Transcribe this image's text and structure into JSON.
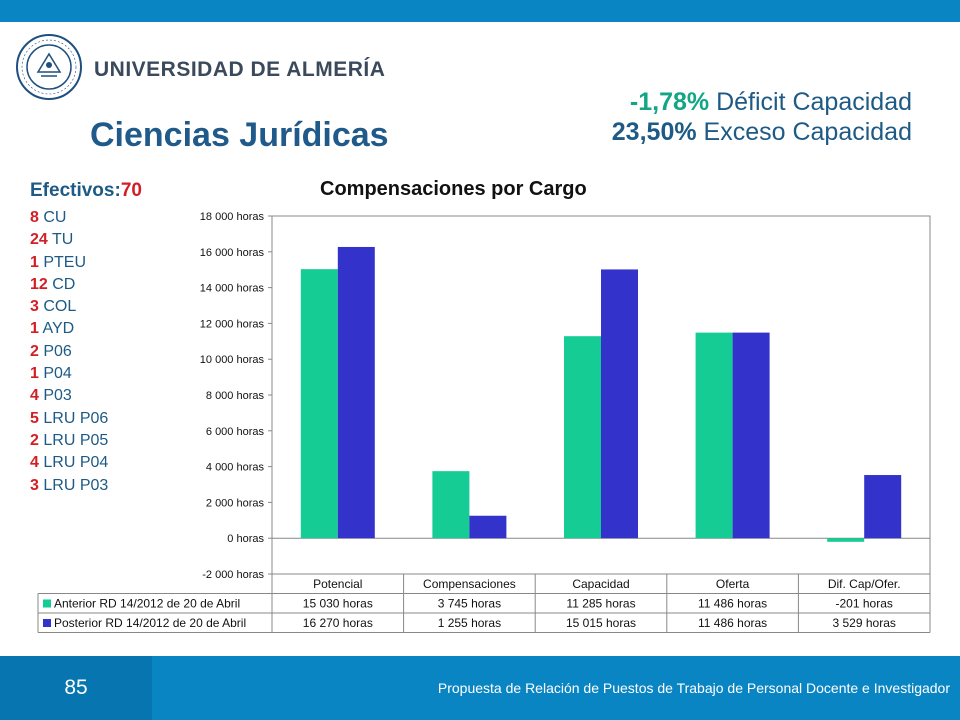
{
  "logo": {
    "text": "UNIVERSIDAD DE ALMERÍA",
    "seal_text": "UNIVERSITAS ALMERIENSIS"
  },
  "title": "Ciencias Jurídicas",
  "stats": [
    {
      "value": "-1,78%",
      "label": "Déficit Capacidad"
    },
    {
      "value": "23,50%",
      "label": "Exceso Capacidad"
    }
  ],
  "efectivos": {
    "label": "Efectivos:",
    "count": "70"
  },
  "staff": [
    {
      "count": "8",
      "cat": "CU"
    },
    {
      "count": "24",
      "cat": "TU"
    },
    {
      "count": "1",
      "cat": "PTEU"
    },
    {
      "count": "12",
      "cat": "CD"
    },
    {
      "count": "3",
      "cat": "COL"
    },
    {
      "count": "1",
      "cat": "AYD"
    },
    {
      "count": "2",
      "cat": "P06"
    },
    {
      "count": "1",
      "cat": "P04"
    },
    {
      "count": "4",
      "cat": "P03"
    },
    {
      "count": "5",
      "cat": "LRU P06"
    },
    {
      "count": "2",
      "cat": "LRU P05"
    },
    {
      "count": "4",
      "cat": "LRU P04"
    },
    {
      "count": "3",
      "cat": "LRU P03"
    }
  ],
  "chart_data": {
    "type": "bar",
    "title": "Compensaciones por Cargo",
    "categories": [
      "Potencial",
      "Compensaciones",
      "Capacidad",
      "Oferta",
      "Dif. Cap/Ofer."
    ],
    "series": [
      {
        "name": "Anterior RD 14/2012 de 20 de Abril",
        "color": "#14cc94",
        "values": [
          15030,
          3745,
          11285,
          11486,
          -201
        ],
        "labels": [
          "15 030 horas",
          "3 745 horas",
          "11 285 horas",
          "11 486 horas",
          "-201 horas"
        ]
      },
      {
        "name": "Posterior RD 14/2012 de 20 de Abril",
        "color": "#3333cc",
        "values": [
          16270,
          1255,
          15015,
          11486,
          3529
        ],
        "labels": [
          "16 270 horas",
          "1 255 horas",
          "15 015 horas",
          "11 486 horas",
          "3 529 horas"
        ]
      }
    ],
    "yticks": [
      "18 000 horas",
      "16 000 horas",
      "14 000 horas",
      "12 000 horas",
      "10 000 horas",
      "8 000 horas",
      "6 000 horas",
      "4 000 horas",
      "2 000 horas",
      "0 horas",
      "-2 000 horas"
    ],
    "ylim": [
      -2000,
      18000
    ],
    "legend": "data-table"
  },
  "footer": {
    "page": "85",
    "text": "Propuesta de Relación de Puestos de Trabajo de Personal Docente e Investigador"
  }
}
